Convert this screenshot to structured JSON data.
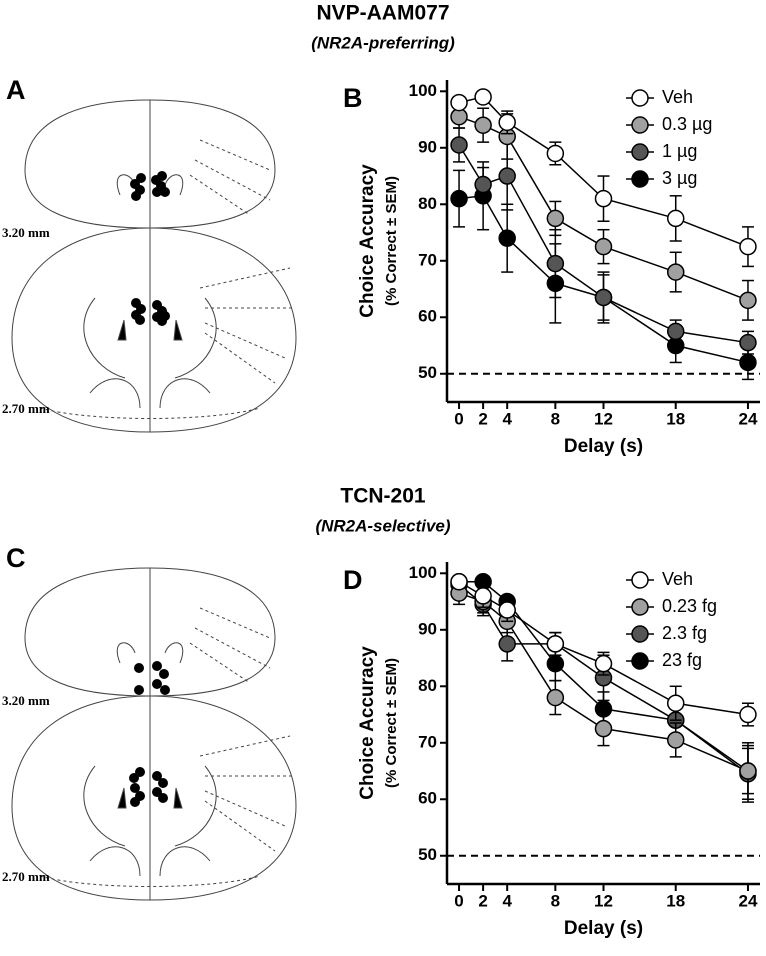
{
  "figure": {
    "panels": [
      {
        "letter": "A",
        "levels": [
          "3.20 mm",
          "2.70 mm"
        ]
      },
      {
        "letter": "C",
        "levels": [
          "3.20 mm",
          "2.70 mm"
        ]
      }
    ]
  },
  "chart_data": [
    {
      "type": "line",
      "panel": "B",
      "title": "NVP-AAM077",
      "subtitle": "(NR2A-preferring)",
      "y_label": "Choice Accuracy",
      "y_label_sub": "(% Correct ± SEM)",
      "x_label": "Delay (s)",
      "x": [
        0,
        2,
        4,
        8,
        12,
        18,
        24
      ],
      "xlim": [
        -1,
        25
      ],
      "xticks": [
        0,
        2,
        4,
        8,
        12,
        18,
        24
      ],
      "ylim": [
        45,
        102
      ],
      "yticks": [
        50,
        60,
        70,
        80,
        90,
        100
      ],
      "reference_line": 50,
      "legend": "upper right",
      "series": [
        {
          "name": "Veh",
          "color": "#ffffff",
          "values": [
            98,
            99,
            94.5,
            89,
            81,
            77.5,
            72.5
          ],
          "errors": [
            1,
            0.5,
            2,
            2,
            4,
            4,
            3.5
          ]
        },
        {
          "name": "0.3 µg",
          "color": "#a0a0a0",
          "values": [
            95.5,
            94,
            92,
            77.5,
            72.5,
            68,
            63
          ],
          "errors": [
            2,
            3,
            4,
            3,
            3,
            3.5,
            3.5
          ]
        },
        {
          "name": "1 µg",
          "color": "#555555",
          "values": [
            90.5,
            83.5,
            85,
            69.5,
            63.5,
            57.5,
            55.5
          ],
          "errors": [
            3,
            3,
            6,
            6,
            4.5,
            2,
            2
          ]
        },
        {
          "name": "3 µg",
          "color": "#000000",
          "values": [
            81,
            81.5,
            74,
            66,
            63.5,
            55,
            52
          ],
          "errors": [
            5,
            6,
            6,
            7,
            4,
            3,
            3
          ]
        }
      ]
    },
    {
      "type": "line",
      "panel": "D",
      "title": "TCN-201",
      "subtitle": "(NR2A-selective)",
      "y_label": "Choice Accuracy",
      "y_label_sub": "(% Correct ± SEM)",
      "x_label": "Delay (s)",
      "x": [
        0,
        2,
        4,
        8,
        12,
        18,
        24
      ],
      "xlim": [
        -1,
        25
      ],
      "xticks": [
        0,
        2,
        4,
        8,
        12,
        18,
        24
      ],
      "ylim": [
        45,
        102
      ],
      "yticks": [
        50,
        60,
        70,
        80,
        90,
        100
      ],
      "reference_line": 50,
      "legend": "upper right",
      "series": [
        {
          "name": "Veh",
          "color": "#ffffff",
          "values": [
            98.5,
            96,
            93.5,
            87.5,
            84,
            77,
            75
          ],
          "errors": [
            1,
            2,
            2,
            2,
            2,
            3,
            2
          ]
        },
        {
          "name": "0.23 fg",
          "color": "#a0a0a0",
          "values": [
            96.5,
            95,
            91.5,
            78,
            72.5,
            70.5,
            65
          ],
          "errors": [
            2,
            2,
            2,
            3,
            3,
            3,
            5
          ]
        },
        {
          "name": "2.3 fg",
          "color": "#555555",
          "values": [
            98,
            94.5,
            87.5,
            87.5,
            81.5,
            74,
            64.5
          ],
          "errors": [
            1,
            2,
            3,
            2,
            4,
            3,
            5
          ]
        },
        {
          "name": "23 fg",
          "color": "#000000",
          "values": [
            98.5,
            98.5,
            95,
            84,
            76,
            74,
            65
          ],
          "errors": [
            1,
            1,
            1,
            3,
            3,
            3,
            4
          ]
        }
      ]
    }
  ]
}
